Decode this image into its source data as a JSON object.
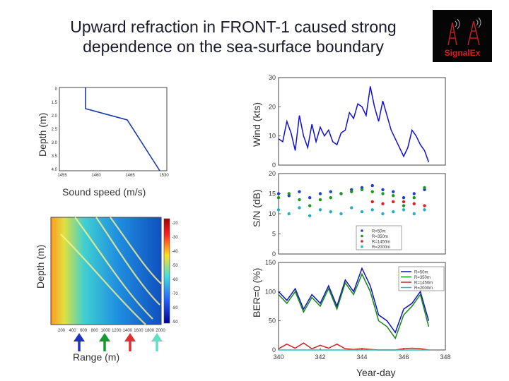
{
  "slide": {
    "title_line1": "Upward refraction in FRONT-1 caused strong",
    "title_line2": "dependence on the sea-surface boundary"
  },
  "logo": {
    "text": "SignalEx"
  },
  "sound_speed_panel": {
    "ylabel": "Depth (m)",
    "xlabel": "Sound speed (m/s)",
    "x_ticks": [
      "1455",
      "1460",
      "1465",
      "1530"
    ],
    "y_ticks": [
      "0",
      "1.5",
      "2.0",
      "2.5",
      "3.0",
      "3.5",
      "4.0"
    ]
  },
  "transmission_panel": {
    "ylabel": "Depth (m)",
    "xlabel": "Range (m)",
    "x_ticks": [
      "200",
      "400",
      "600",
      "800",
      "1000",
      "1200",
      "1400",
      "1600",
      "1800",
      "2000"
    ],
    "colorbar_ticks": [
      "-20",
      "-30",
      "-40",
      "-50",
      "-60",
      "-70",
      "-80",
      "-90"
    ]
  },
  "time_series": {
    "xlabel": "Year-day",
    "x_ticks": [
      "340",
      "342",
      "344",
      "346",
      "348"
    ]
  },
  "chart_data": [
    {
      "type": "line",
      "ylabel": "Wind (kts)",
      "ylim": [
        0,
        30
      ],
      "yticks": [
        "30",
        "20",
        "10",
        "0"
      ],
      "series": [
        {
          "color": "#1010d0",
          "x": [
            340,
            340.2,
            340.4,
            340.6,
            340.8,
            341,
            341.2,
            341.4,
            341.6,
            341.8,
            342,
            342.2,
            342.4,
            342.6,
            342.8,
            343,
            343.2,
            343.4,
            343.6,
            343.8,
            344,
            344.2,
            344.4,
            344.6,
            344.8,
            345,
            345.2,
            345.4,
            345.6,
            345.8,
            346,
            346.2,
            346.4,
            346.6,
            346.8,
            347,
            347.2
          ],
          "y": [
            9,
            8,
            15,
            11,
            5,
            17,
            10,
            6,
            14,
            8,
            13,
            10,
            12,
            8,
            7,
            11,
            12,
            18,
            16,
            21,
            20,
            17,
            27,
            20,
            15,
            22,
            17,
            12,
            9,
            6,
            3,
            6,
            12,
            10,
            7,
            5,
            1
          ]
        }
      ]
    },
    {
      "type": "scatter",
      "ylabel": "S/N (dB)",
      "ylim": [
        0,
        20
      ],
      "yticks": [
        "20",
        "15",
        "10",
        "5",
        "0"
      ],
      "legend": [
        "R=50m",
        "R=350m",
        "R=1450m",
        "R=2000m"
      ],
      "series": [
        {
          "color": "#1f3fd0",
          "x": [
            340,
            340.5,
            341,
            341.5,
            342,
            342.5,
            343,
            343.5,
            344,
            344.5,
            345,
            345.5,
            346,
            346.5,
            347
          ],
          "y": [
            15,
            14.5,
            15.5,
            14,
            15,
            15.5,
            15,
            16,
            16.5,
            17,
            16,
            15.5,
            14,
            15,
            16
          ]
        },
        {
          "color": "#1a9a1a",
          "x": [
            340,
            340.5,
            341,
            341.5,
            342,
            342.5,
            343,
            343.5,
            344,
            344.5,
            345,
            345.5,
            346,
            346.5,
            347
          ],
          "y": [
            14,
            15,
            13.5,
            12,
            13.5,
            14,
            15,
            15.5,
            16,
            15.5,
            15,
            14.5,
            12,
            14,
            16.5
          ]
        },
        {
          "color": "#e02020",
          "x": [
            344.5,
            345,
            345.5,
            346,
            346.5,
            347
          ],
          "y": [
            13,
            12.5,
            13,
            13,
            12.5,
            12
          ]
        },
        {
          "color": "#20b0c0",
          "x": [
            340,
            340.5,
            341,
            341.5,
            342,
            342.5,
            343,
            343.5,
            344,
            344.5,
            345,
            345.5,
            346,
            346.5,
            347
          ],
          "y": [
            11,
            10,
            11.5,
            9.5,
            11,
            10.5,
            10,
            11.5,
            10.5,
            11,
            10,
            10.5,
            11,
            10,
            11
          ]
        }
      ]
    },
    {
      "type": "line",
      "ylabel": "BER=0 (%)",
      "ylim": [
        0,
        150
      ],
      "yticks": [
        "150",
        "100",
        "50",
        "0"
      ],
      "legend": [
        "R=50m",
        "R=350m",
        "R=1450m",
        "R=2000m"
      ],
      "series": [
        {
          "color": "#1010c0",
          "x": [
            340,
            340.4,
            340.8,
            341.2,
            341.6,
            342,
            342.4,
            342.8,
            343.2,
            343.6,
            344,
            344.4,
            344.8,
            345.2,
            345.6,
            346,
            346.4,
            346.8,
            347.2
          ],
          "y": [
            100,
            85,
            105,
            70,
            95,
            80,
            110,
            75,
            120,
            100,
            140,
            110,
            60,
            50,
            30,
            70,
            80,
            100,
            50
          ]
        },
        {
          "color": "#108a10",
          "x": [
            340,
            340.4,
            340.8,
            341.2,
            341.6,
            342,
            342.4,
            342.8,
            343.2,
            343.6,
            344,
            344.4,
            344.8,
            345.2,
            345.6,
            346,
            346.4,
            346.8,
            347.2
          ],
          "y": [
            95,
            80,
            100,
            65,
            90,
            75,
            105,
            70,
            115,
            95,
            130,
            100,
            50,
            40,
            20,
            60,
            75,
            95,
            40
          ]
        },
        {
          "color": "#d02020",
          "x": [
            340,
            340.4,
            340.8,
            341.2,
            341.6,
            342,
            342.4,
            342.8,
            343.2,
            343.6,
            344,
            344.4,
            344.8,
            345.2,
            345.6,
            346,
            346.4,
            346.8,
            347.2
          ],
          "y": [
            2,
            10,
            3,
            12,
            2,
            8,
            3,
            10,
            2,
            1,
            2,
            1,
            0,
            0,
            0,
            2,
            3,
            2,
            0
          ]
        },
        {
          "color": "#20c0c0",
          "x": [
            340,
            347.2
          ],
          "y": [
            0,
            0
          ]
        }
      ]
    }
  ]
}
